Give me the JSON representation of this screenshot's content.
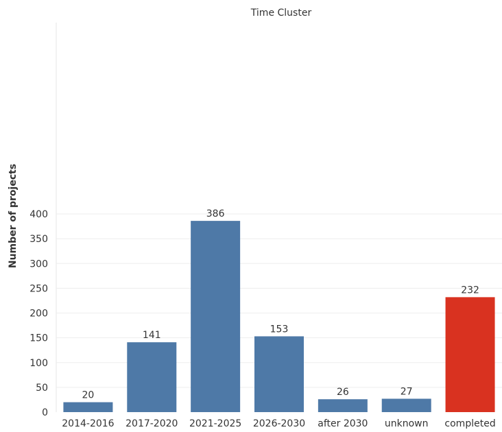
{
  "chart_data": {
    "type": "bar",
    "title": "Time Cluster",
    "xlabel": "",
    "ylabel": "Number of projects",
    "categories": [
      "2014-2016",
      "2017-2020",
      "2021-2025",
      "2026-2030",
      "after 2030",
      "unknown",
      "completed"
    ],
    "values": [
      20,
      141,
      386,
      153,
      26,
      27,
      232
    ],
    "bar_colors": [
      "#4e79a7",
      "#4e79a7",
      "#4e79a7",
      "#4e79a7",
      "#4e79a7",
      "#4e79a7",
      "#d93220"
    ],
    "data_labels": [
      "20",
      "141",
      "386",
      "153",
      "26",
      "27",
      "232"
    ],
    "ylim": [
      0,
      420
    ],
    "yticks": [
      0,
      50,
      100,
      150,
      200,
      250,
      300,
      350,
      400
    ],
    "ytick_labels": [
      "0",
      "50",
      "100",
      "150",
      "200",
      "250",
      "300",
      "350",
      "400"
    ],
    "grid": true,
    "legend": "none"
  }
}
